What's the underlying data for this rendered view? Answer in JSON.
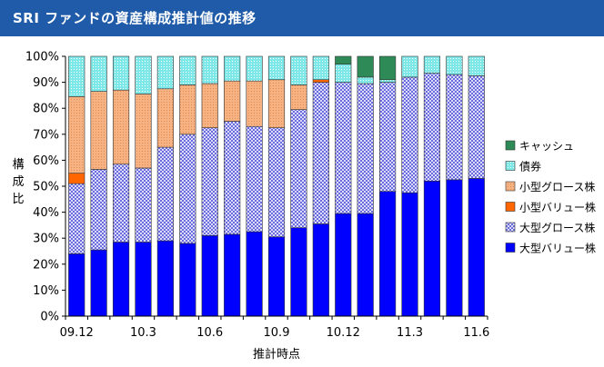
{
  "header": {
    "title": "SRI ファンドの資産構成推計値の推移"
  },
  "chart_data": {
    "type": "bar",
    "stacked": true,
    "title": "SRI ファンドの資産構成推計値の推移",
    "xlabel": "推計時点",
    "ylabel": "構成比",
    "ylim": [
      0,
      100
    ],
    "yticks": [
      "0%",
      "10%",
      "20%",
      "30%",
      "40%",
      "50%",
      "60%",
      "70%",
      "80%",
      "90%",
      "100%"
    ],
    "x_tick_labels": [
      "09.12",
      "10.3",
      "10.6",
      "10.9",
      "10.12",
      "11.3",
      "11.6"
    ],
    "x_tick_positions": [
      0,
      3,
      6,
      9,
      12,
      15,
      18
    ],
    "categories": [
      "09.12",
      "10.1",
      "10.2",
      "10.3",
      "10.4",
      "10.5",
      "10.6",
      "10.7",
      "10.8",
      "10.9",
      "10.10",
      "10.11",
      "10.12",
      "11.1",
      "11.2",
      "11.3",
      "11.4",
      "11.5",
      "11.6"
    ],
    "grid": false,
    "legend_position": "right",
    "series": [
      {
        "name": "大型バリュー株",
        "color": "#0000ff",
        "pattern": "solid",
        "values": [
          24,
          25.5,
          28.5,
          28.5,
          29,
          28,
          31,
          31.5,
          32.5,
          30.5,
          34,
          35.5,
          39.5,
          39.5,
          48,
          47.5,
          52,
          52.5,
          53
        ]
      },
      {
        "name": "大型グロース株",
        "color": "#9999ee",
        "pattern": "checker",
        "values": [
          27,
          31,
          30,
          28.5,
          36,
          42,
          41.5,
          43.5,
          40.5,
          42,
          45.5,
          54.5,
          50.5,
          50,
          42,
          44.5,
          41.5,
          40.5,
          39.5
        ]
      },
      {
        "name": "小型バリュー株",
        "color": "#ff6600",
        "pattern": "solid",
        "values": [
          4,
          0,
          0,
          0,
          0,
          0,
          0,
          0,
          0,
          0,
          0,
          1,
          0,
          0,
          0,
          0,
          0,
          0,
          0
        ]
      },
      {
        "name": "小型グロース株",
        "color": "#f4a46c",
        "pattern": "dots",
        "values": [
          29.5,
          30,
          28.5,
          28.5,
          22.5,
          19,
          17,
          15.5,
          17.5,
          18.5,
          9.5,
          0,
          0,
          0,
          0,
          0,
          0,
          0,
          0
        ]
      },
      {
        "name": "債券",
        "color": "#55dddd",
        "pattern": "dots",
        "values": [
          15.5,
          13.5,
          13,
          14.5,
          12.5,
          11,
          10.5,
          9.5,
          9.5,
          9,
          11,
          9,
          7,
          2.5,
          1,
          8,
          6.5,
          7,
          7.5
        ]
      },
      {
        "name": "キャッシュ",
        "color": "#2e8b57",
        "pattern": "solid",
        "values": [
          0,
          0,
          0,
          0,
          0,
          0,
          0,
          0,
          0,
          0,
          0,
          0,
          3,
          8,
          9,
          0,
          0,
          0,
          0
        ]
      }
    ]
  }
}
